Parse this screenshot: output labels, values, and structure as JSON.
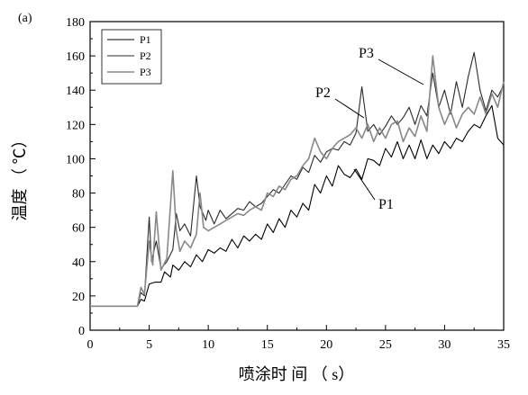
{
  "chart_data": {
    "type": "line",
    "panel_label": "(a)",
    "xlabel": "喷涂时 间 （ s）",
    "ylabel": "温度 （ ℃）",
    "xlim": [
      0,
      35
    ],
    "ylim": [
      0,
      180
    ],
    "xticks": [
      0,
      5,
      10,
      15,
      20,
      25,
      30,
      35
    ],
    "yticks": [
      0,
      20,
      40,
      60,
      80,
      100,
      120,
      140,
      160,
      180
    ],
    "grid": false,
    "legend": {
      "placement": "top-left",
      "entries": [
        "P1",
        "P2",
        "P3"
      ]
    },
    "annotations": [
      {
        "text": "P1",
        "x": 22.5,
        "y": 95
      },
      {
        "text": "P2",
        "x": 23,
        "y": 115
      },
      {
        "text": "P3",
        "x": 28,
        "y": 145
      }
    ],
    "series": [
      {
        "name": "P1",
        "color": "#000000",
        "points": [
          [
            0,
            14
          ],
          [
            4,
            14
          ],
          [
            4.3,
            18
          ],
          [
            4.6,
            17
          ],
          [
            5,
            27
          ],
          [
            5.5,
            28
          ],
          [
            6,
            28
          ],
          [
            6.3,
            34
          ],
          [
            6.8,
            31
          ],
          [
            7,
            38
          ],
          [
            7.5,
            35
          ],
          [
            8,
            40
          ],
          [
            8.5,
            37
          ],
          [
            9,
            44
          ],
          [
            9.5,
            40
          ],
          [
            10,
            47
          ],
          [
            10.5,
            45
          ],
          [
            11,
            48
          ],
          [
            11.5,
            46
          ],
          [
            12,
            53
          ],
          [
            12.5,
            48
          ],
          [
            13,
            55
          ],
          [
            13.5,
            52
          ],
          [
            14,
            56
          ],
          [
            14.5,
            53
          ],
          [
            15,
            62
          ],
          [
            15.5,
            57
          ],
          [
            16,
            65
          ],
          [
            16.5,
            60
          ],
          [
            17,
            70
          ],
          [
            17.5,
            66
          ],
          [
            18,
            74
          ],
          [
            18.5,
            70
          ],
          [
            19,
            85
          ],
          [
            19.5,
            80
          ],
          [
            20,
            90
          ],
          [
            20.5,
            84
          ],
          [
            21,
            96
          ],
          [
            21.5,
            91
          ],
          [
            22,
            89
          ],
          [
            22.5,
            94
          ],
          [
            23,
            88
          ],
          [
            23.5,
            100
          ],
          [
            24,
            99
          ],
          [
            24.5,
            96
          ],
          [
            25,
            106
          ],
          [
            25.5,
            101
          ],
          [
            26,
            110
          ],
          [
            26.5,
            100
          ],
          [
            27,
            108
          ],
          [
            27.5,
            100
          ],
          [
            28,
            111
          ],
          [
            28.5,
            100
          ],
          [
            29,
            108
          ],
          [
            29.5,
            103
          ],
          [
            30,
            110
          ],
          [
            30.5,
            106
          ],
          [
            31,
            112
          ],
          [
            31.5,
            110
          ],
          [
            32,
            116
          ],
          [
            32.5,
            120
          ],
          [
            33,
            118
          ],
          [
            33.5,
            125
          ],
          [
            34,
            131
          ],
          [
            34.5,
            112
          ],
          [
            35,
            108
          ]
        ]
      },
      {
        "name": "P2",
        "color": "#2a2a2a",
        "points": [
          [
            0,
            14
          ],
          [
            4,
            14
          ],
          [
            4.3,
            22
          ],
          [
            4.6,
            20
          ],
          [
            5,
            66
          ],
          [
            5.2,
            40
          ],
          [
            5.6,
            52
          ],
          [
            6,
            36
          ],
          [
            6.5,
            40
          ],
          [
            7,
            47
          ],
          [
            7.3,
            68
          ],
          [
            7.6,
            58
          ],
          [
            8,
            62
          ],
          [
            8.5,
            55
          ],
          [
            9,
            90
          ],
          [
            9.3,
            72
          ],
          [
            9.8,
            64
          ],
          [
            10,
            70
          ],
          [
            10.5,
            62
          ],
          [
            11,
            70
          ],
          [
            11.5,
            65
          ],
          [
            12,
            68
          ],
          [
            12.5,
            71
          ],
          [
            13,
            70
          ],
          [
            13.5,
            75
          ],
          [
            14,
            72
          ],
          [
            14.5,
            74
          ],
          [
            15,
            78
          ],
          [
            15.5,
            82
          ],
          [
            16,
            80
          ],
          [
            16.5,
            85
          ],
          [
            17,
            90
          ],
          [
            17.5,
            88
          ],
          [
            18,
            95
          ],
          [
            18.5,
            92
          ],
          [
            19,
            102
          ],
          [
            19.5,
            98
          ],
          [
            20,
            104
          ],
          [
            20.5,
            106
          ],
          [
            21,
            105
          ],
          [
            21.5,
            110
          ],
          [
            22,
            108
          ],
          [
            22.5,
            115
          ],
          [
            23,
            142
          ],
          [
            23.5,
            116
          ],
          [
            24,
            120
          ],
          [
            24.5,
            114
          ],
          [
            25,
            119
          ],
          [
            25.5,
            125
          ],
          [
            26,
            120
          ],
          [
            26.5,
            124
          ],
          [
            27,
            130
          ],
          [
            27.5,
            120
          ],
          [
            28,
            131
          ],
          [
            28.5,
            125
          ],
          [
            29,
            150
          ],
          [
            29.5,
            130
          ],
          [
            30,
            140
          ],
          [
            30.5,
            126
          ],
          [
            31,
            145
          ],
          [
            31.5,
            130
          ],
          [
            32,
            148
          ],
          [
            32.5,
            162
          ],
          [
            33,
            140
          ],
          [
            33.5,
            128
          ],
          [
            34,
            140
          ],
          [
            34.5,
            136
          ],
          [
            35,
            143
          ]
        ]
      },
      {
        "name": "P3",
        "color": "#888888",
        "points": [
          [
            0,
            14
          ],
          [
            4,
            14
          ],
          [
            4.3,
            25
          ],
          [
            4.6,
            21
          ],
          [
            5,
            52
          ],
          [
            5.3,
            38
          ],
          [
            5.6,
            69
          ],
          [
            6,
            35
          ],
          [
            6.5,
            42
          ],
          [
            7,
            93
          ],
          [
            7.3,
            58
          ],
          [
            7.6,
            46
          ],
          [
            8,
            52
          ],
          [
            8.5,
            48
          ],
          [
            9,
            56
          ],
          [
            9.3,
            80
          ],
          [
            9.6,
            60
          ],
          [
            10,
            58
          ],
          [
            10.5,
            60
          ],
          [
            11,
            62
          ],
          [
            11.5,
            64
          ],
          [
            12,
            66
          ],
          [
            12.5,
            68
          ],
          [
            13,
            67
          ],
          [
            13.5,
            70
          ],
          [
            14,
            72
          ],
          [
            14.5,
            70
          ],
          [
            15,
            80
          ],
          [
            15.5,
            78
          ],
          [
            16,
            84
          ],
          [
            16.5,
            82
          ],
          [
            17,
            88
          ],
          [
            17.5,
            90
          ],
          [
            18,
            96
          ],
          [
            18.5,
            100
          ],
          [
            19,
            112
          ],
          [
            19.5,
            104
          ],
          [
            20,
            100
          ],
          [
            20.5,
            106
          ],
          [
            21,
            110
          ],
          [
            21.5,
            112
          ],
          [
            22,
            114
          ],
          [
            22.5,
            118
          ],
          [
            23,
            112
          ],
          [
            23.5,
            120
          ],
          [
            24,
            110
          ],
          [
            24.5,
            118
          ],
          [
            25,
            112
          ],
          [
            25.5,
            120
          ],
          [
            26,
            122
          ],
          [
            26.5,
            110
          ],
          [
            27,
            118
          ],
          [
            27.5,
            113
          ],
          [
            28,
            125
          ],
          [
            28.5,
            116
          ],
          [
            29,
            160
          ],
          [
            29.5,
            130
          ],
          [
            30,
            120
          ],
          [
            30.5,
            128
          ],
          [
            31,
            118
          ],
          [
            31.5,
            126
          ],
          [
            32,
            130
          ],
          [
            32.5,
            126
          ],
          [
            33,
            136
          ],
          [
            33.5,
            126
          ],
          [
            34,
            138
          ],
          [
            34.5,
            130
          ],
          [
            35,
            145
          ]
        ]
      }
    ]
  }
}
